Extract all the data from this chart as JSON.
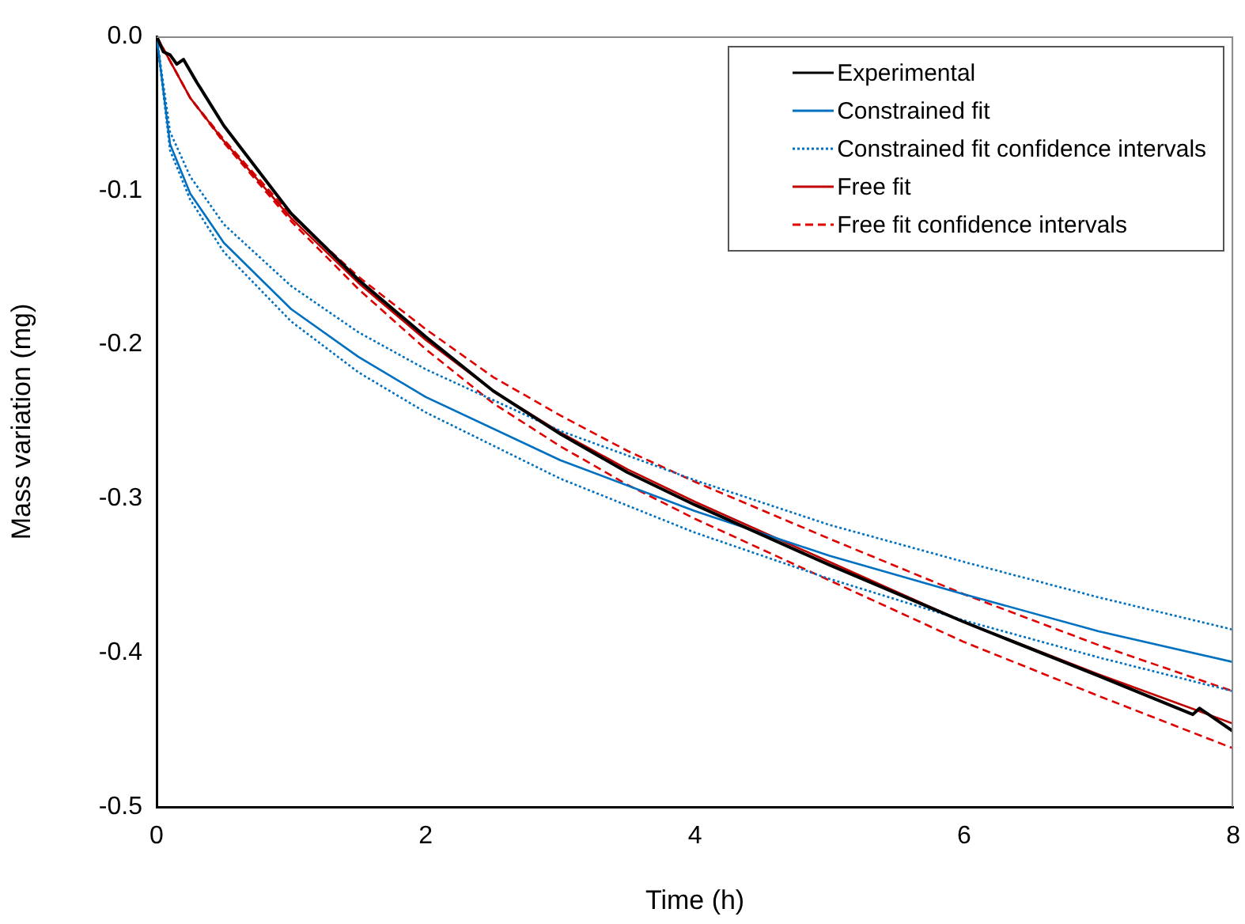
{
  "chart_data": {
    "type": "line",
    "xlabel": "Time (h)",
    "ylabel": "Mass variation (mg)",
    "xlim": [
      0,
      8
    ],
    "xticks": [
      0,
      2,
      4,
      6,
      8
    ],
    "ylim": [
      -0.5,
      0
    ],
    "yticks": [
      {
        "value": 0,
        "label": "0.0"
      },
      {
        "value": -0.1,
        "label": "-0.1"
      },
      {
        "value": -0.2,
        "label": "-0.2"
      },
      {
        "value": -0.3,
        "label": "-0.3"
      },
      {
        "value": -0.4,
        "label": "-0.4"
      },
      {
        "value": -0.5,
        "label": "-0.5"
      }
    ],
    "grid": false,
    "legend": "top right",
    "marker": "none",
    "series": [
      {
        "name": "Experimental",
        "color": "#000000",
        "line_style": "solid",
        "x": [
          0,
          0.05,
          0.1,
          0.15,
          0.2,
          0.3,
          0.5,
          1,
          1.5,
          2,
          2.5,
          3,
          3.5,
          4,
          5,
          6,
          7,
          7.7,
          7.75,
          8
        ],
        "values": [
          0,
          -0.01,
          -0.012,
          -0.018,
          -0.015,
          -0.03,
          -0.058,
          -0.115,
          -0.158,
          -0.195,
          -0.23,
          -0.258,
          -0.283,
          -0.304,
          -0.343,
          -0.38,
          -0.415,
          -0.44,
          -0.436,
          -0.451
        ]
      },
      {
        "name": "Constrained fit",
        "color": "#0070c0",
        "line_style": "solid",
        "x": [
          0,
          0.1,
          0.25,
          0.5,
          1,
          1.5,
          2,
          3,
          4,
          5,
          6,
          7,
          8
        ],
        "values": [
          0,
          -0.07,
          -0.102,
          -0.134,
          -0.177,
          -0.208,
          -0.234,
          -0.275,
          -0.308,
          -0.337,
          -0.362,
          -0.386,
          -0.406
        ]
      },
      {
        "name": "Constrained fit confidence intervals",
        "color": "#0070c0",
        "line_style": "dotted",
        "x": [
          0,
          0.1,
          0.25,
          0.5,
          1,
          1.5,
          2,
          3,
          4,
          5,
          6,
          7,
          8
        ],
        "values": [
          0,
          -0.062,
          -0.091,
          -0.122,
          -0.162,
          -0.192,
          -0.216,
          -0.256,
          -0.288,
          -0.317,
          -0.341,
          -0.364,
          -0.385
        ]
      },
      {
        "color": "#0070c0",
        "line_style": "dotted",
        "x": [
          0,
          0.1,
          0.25,
          0.5,
          1,
          1.5,
          2,
          3,
          4,
          5,
          6,
          7,
          8
        ],
        "values": [
          0,
          -0.074,
          -0.106,
          -0.14,
          -0.185,
          -0.218,
          -0.244,
          -0.287,
          -0.322,
          -0.352,
          -0.379,
          -0.403,
          -0.425
        ]
      },
      {
        "name": "Free fit",
        "color": "#c00000",
        "line_style": "solid",
        "x": [
          0,
          0.25,
          0.5,
          1,
          1.5,
          2,
          2.5,
          3,
          3.5,
          4,
          5,
          6,
          7,
          8
        ],
        "values": [
          0,
          -0.04,
          -0.068,
          -0.118,
          -0.16,
          -0.197,
          -0.23,
          -0.257,
          -0.281,
          -0.302,
          -0.341,
          -0.38,
          -0.414,
          -0.446
        ]
      },
      {
        "name": "Free fit confidence intervals",
        "color": "#e00000",
        "line_style": "dashed",
        "x": [
          0,
          0.25,
          0.5,
          1,
          1.5,
          2,
          2.5,
          3,
          3.5,
          4,
          5,
          6,
          7,
          8
        ],
        "values": [
          0,
          -0.04,
          -0.067,
          -0.116,
          -0.156,
          -0.19,
          -0.221,
          -0.246,
          -0.269,
          -0.289,
          -0.326,
          -0.362,
          -0.395,
          -0.425
        ]
      },
      {
        "color": "#e00000",
        "line_style": "dashed",
        "x": [
          0,
          0.25,
          0.5,
          1,
          1.5,
          2,
          2.5,
          3,
          3.5,
          4,
          5,
          6,
          7,
          8
        ],
        "values": [
          0,
          -0.04,
          -0.069,
          -0.12,
          -0.164,
          -0.203,
          -0.238,
          -0.266,
          -0.291,
          -0.313,
          -0.353,
          -0.393,
          -0.428,
          -0.462
        ]
      }
    ]
  }
}
